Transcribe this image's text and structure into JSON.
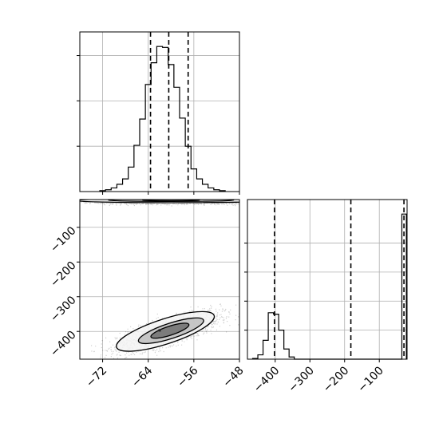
{
  "chart_data": {
    "type": "corner",
    "grid": true,
    "parameters": [
      {
        "name": "",
        "range": [
          -76,
          -48
        ],
        "ticks": [
          -72,
          -64,
          -56,
          -48
        ],
        "tick_labels": [
          "−72",
          "−64",
          "−56",
          "−48"
        ],
        "quantiles": [
          -63.6,
          -60.4,
          -57.0
        ]
      },
      {
        "name": "",
        "range": [
          -480,
          -20
        ],
        "ticks": [
          -400,
          -300,
          -200,
          -100
        ],
        "tick_labels": [
          "−400",
          "−300",
          "−200",
          "−100"
        ],
        "quantiles": [
          -402,
          -182,
          -29
        ]
      }
    ],
    "histogram_1": {
      "bin_edges": [
        -72.5,
        -71.5,
        -70.5,
        -69.5,
        -68.5,
        -67.5,
        -66.5,
        -65.5,
        -64.5,
        -63.5,
        -62.5,
        -61.5,
        -60.5,
        -59.5,
        -58.5,
        -57.5,
        -56.5,
        -55.5,
        -54.5,
        -53.5,
        -52.5,
        -51.5,
        -50.5
      ],
      "counts": [
        1,
        2,
        4,
        8,
        14,
        27,
        51,
        80,
        118,
        142,
        160,
        159,
        140,
        115,
        81,
        50,
        25,
        14,
        8,
        4,
        2,
        1
      ]
    },
    "histogram_2": {
      "bin_edges": [
        -465,
        -450,
        -435,
        -420,
        -405,
        -390,
        -375,
        -360,
        -345,
        -330,
        -315
      ],
      "counts": [
        0.5,
        3,
        13,
        32,
        31,
        20,
        7,
        1.5,
        0,
        0
      ],
      "spike": {
        "x": [
          -35,
          -22
        ],
        "count": 100
      }
    },
    "scatter_2d": {
      "center": [
        -60.5,
        -400
      ],
      "cluster_spread": [
        4.5,
        28
      ],
      "band_y": -25,
      "band_spread": [
        5,
        4
      ],
      "contour_levels": [
        {
          "center": [
            -61.0,
            -400
          ],
          "radii": [
            9.0,
            36
          ]
        },
        {
          "center": [
            -60.0,
            -398
          ],
          "radii": [
            6.0,
            22
          ]
        },
        {
          "center": [
            -60.2,
            -398
          ],
          "radii": [
            3.5,
            13
          ]
        }
      ],
      "band_contours": [
        {
          "center": [
            -60.0,
            -23
          ],
          "radii": [
            17,
            6
          ]
        },
        {
          "center": [
            -60.0,
            -22
          ],
          "radii": [
            11,
            3.5
          ]
        },
        {
          "center": [
            -60.0,
            -22
          ],
          "radii": [
            5,
            2
          ]
        }
      ]
    }
  }
}
